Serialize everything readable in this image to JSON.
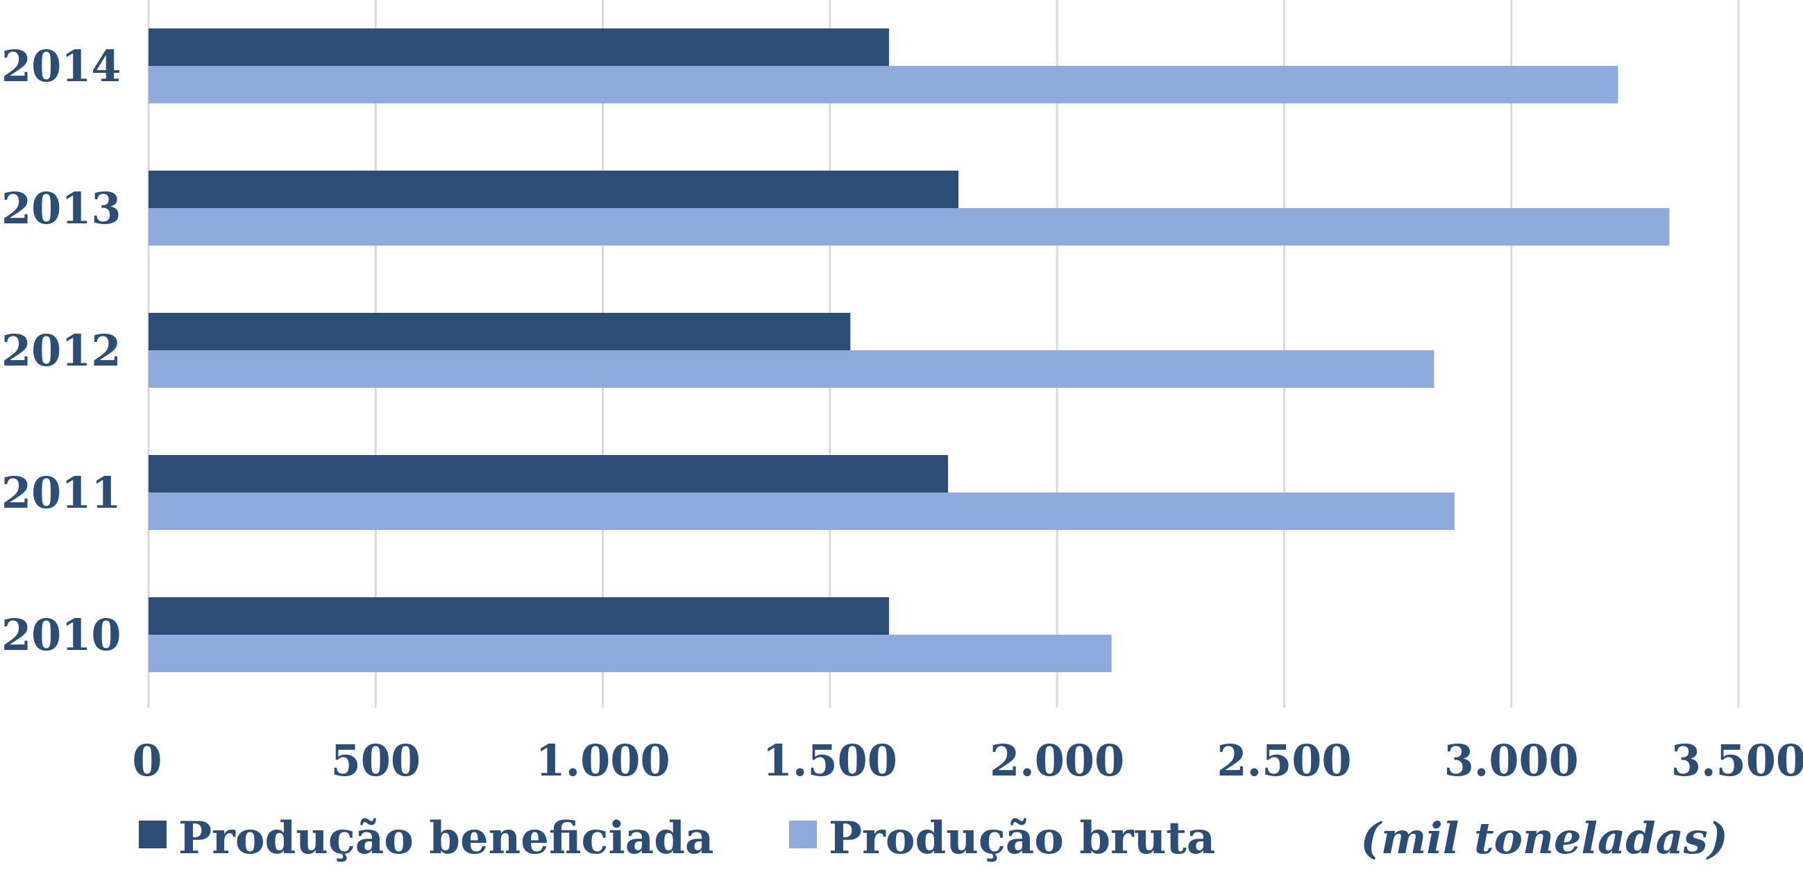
{
  "chart_data": {
    "type": "bar",
    "orientation": "horizontal",
    "categories": [
      "2010",
      "2011",
      "2012",
      "2013",
      "2014"
    ],
    "series": [
      {
        "name": "Produção beneficiada",
        "color": "#2c4d75",
        "values": [
          1630,
          1760,
          1545,
          1783,
          1630
        ]
      },
      {
        "name": "Produção bruta",
        "color": "#8faadc",
        "values": [
          2120,
          2875,
          2830,
          3348,
          3235
        ]
      }
    ],
    "xlim": [
      0,
      3500
    ],
    "xticks": [
      0,
      500,
      1000,
      1500,
      2000,
      2500,
      3000,
      3500
    ],
    "xtick_labels": [
      "0",
      "500",
      "1.000",
      "1.500",
      "2.000",
      "2.500",
      "3.000",
      "3.500"
    ],
    "grid": true,
    "legend_position": "bottom",
    "unit_label": "(mil toneladas)",
    "text_color": "#2c4d75",
    "grid_color": "#d9d9d9"
  }
}
